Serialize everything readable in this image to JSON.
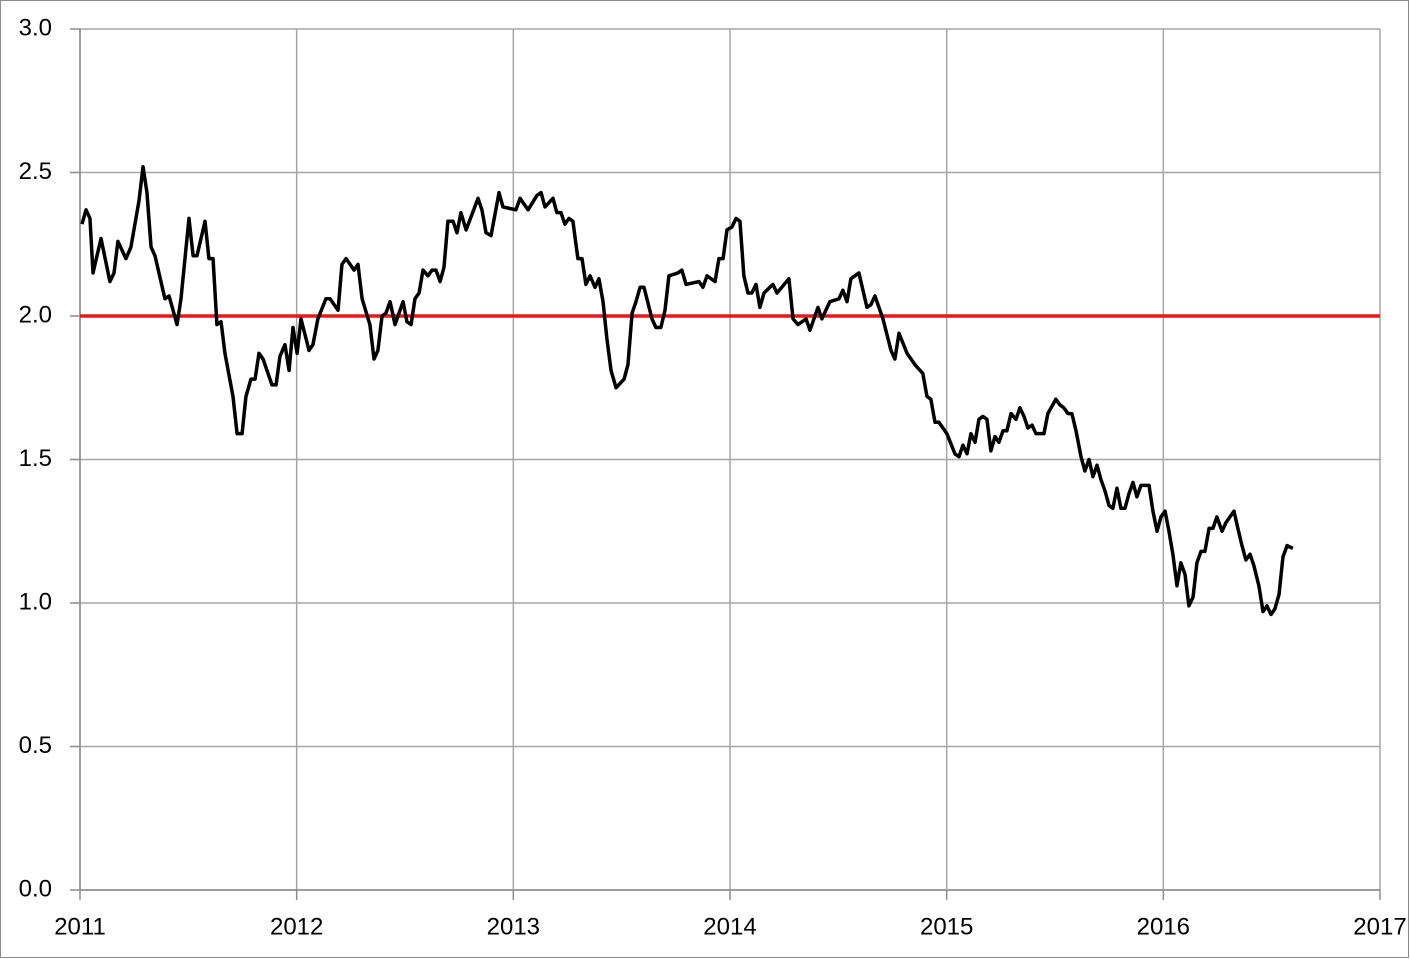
{
  "chart_data": {
    "type": "line",
    "x": [
      2011.009,
      2011.028,
      2011.046,
      2011.06,
      2011.097,
      2011.138,
      2011.157,
      2011.175,
      2011.212,
      2011.235,
      2011.272,
      2011.291,
      2011.309,
      2011.328,
      2011.346,
      2011.392,
      2011.411,
      2011.448,
      2011.466,
      2011.503,
      2011.522,
      2011.54,
      2011.577,
      2011.595,
      2011.614,
      2011.632,
      2011.651,
      2011.669,
      2011.706,
      2011.725,
      2011.748,
      2011.766,
      2011.789,
      2011.808,
      2011.826,
      2011.845,
      2011.886,
      2011.905,
      2011.923,
      2011.946,
      2011.965,
      2011.983,
      2012.002,
      2012.02,
      2012.057,
      2012.075,
      2012.098,
      2012.135,
      2012.154,
      2012.191,
      2012.209,
      2012.228,
      2012.265,
      2012.283,
      2012.302,
      2012.338,
      2012.357,
      2012.375,
      2012.394,
      2012.412,
      2012.431,
      2012.454,
      2012.491,
      2012.509,
      2012.528,
      2012.546,
      2012.565,
      2012.583,
      2012.606,
      2012.625,
      2012.643,
      2012.662,
      2012.68,
      2012.698,
      2012.722,
      2012.74,
      2012.758,
      2012.782,
      2012.837,
      2012.855,
      2012.874,
      2012.897,
      2012.934,
      2012.952,
      2013.012,
      2013.031,
      2013.068,
      2013.109,
      2013.128,
      2013.146,
      2013.183,
      2013.201,
      2013.22,
      2013.238,
      2013.257,
      2013.275,
      2013.298,
      2013.317,
      2013.335,
      2013.354,
      2013.377,
      2013.395,
      2013.414,
      2013.432,
      2013.451,
      2013.474,
      2013.511,
      2013.529,
      2013.548,
      2013.566,
      2013.585,
      2013.603,
      2013.64,
      2013.658,
      2013.681,
      2013.7,
      2013.718,
      2013.76,
      2013.778,
      2013.797,
      2013.857,
      2013.875,
      2013.894,
      2013.931,
      2013.949,
      2013.968,
      2013.986,
      2014.009,
      2014.028,
      2014.046,
      2014.064,
      2014.083,
      2014.101,
      2014.12,
      2014.138,
      2014.157,
      2014.198,
      2014.217,
      2014.272,
      2014.291,
      2014.314,
      2014.351,
      2014.369,
      2014.406,
      2014.424,
      2014.461,
      2014.503,
      2014.521,
      2014.54,
      2014.558,
      2014.595,
      2014.632,
      2014.651,
      2014.669,
      2014.706,
      2014.743,
      2014.761,
      2014.78,
      2014.817,
      2014.854,
      2014.89,
      2014.909,
      2014.927,
      2014.946,
      2014.964,
      2015.001,
      2015.038,
      2015.057,
      2015.075,
      2015.094,
      2015.112,
      2015.131,
      2015.149,
      2015.167,
      2015.186,
      2015.204,
      2015.223,
      2015.241,
      2015.26,
      2015.278,
      2015.297,
      2015.32,
      2015.338,
      2015.357,
      2015.375,
      2015.394,
      2015.412,
      2015.449,
      2015.467,
      2015.504,
      2015.523,
      2015.541,
      2015.56,
      2015.578,
      2015.597,
      2015.62,
      2015.638,
      2015.657,
      2015.675,
      2015.694,
      2015.712,
      2015.731,
      2015.749,
      2015.767,
      2015.786,
      2015.804,
      2015.823,
      2015.841,
      2015.86,
      2015.878,
      2015.897,
      2015.934,
      2015.952,
      2015.971,
      2015.989,
      2016.008,
      2016.026,
      2016.044,
      2016.063,
      2016.081,
      2016.1,
      2016.118,
      2016.137,
      2016.155,
      2016.174,
      2016.192,
      2016.211,
      2016.229,
      2016.247,
      2016.271,
      2016.289,
      2016.326,
      2016.344,
      2016.363,
      2016.381,
      2016.4,
      2016.418,
      2016.441,
      2016.46,
      2016.478,
      2016.497,
      2016.515,
      2016.534,
      2016.552,
      2016.571,
      2016.598
    ],
    "values": [
      2.32,
      2.37,
      2.34,
      2.15,
      2.27,
      2.12,
      2.15,
      2.26,
      2.2,
      2.24,
      2.4,
      2.52,
      2.43,
      2.24,
      2.21,
      2.06,
      2.07,
      1.97,
      2.06,
      2.34,
      2.21,
      2.21,
      2.33,
      2.2,
      2.2,
      1.97,
      1.98,
      1.87,
      1.72,
      1.59,
      1.59,
      1.72,
      1.78,
      1.78,
      1.87,
      1.85,
      1.76,
      1.76,
      1.86,
      1.9,
      1.81,
      1.96,
      1.87,
      1.99,
      1.88,
      1.9,
      1.99,
      2.06,
      2.06,
      2.02,
      2.18,
      2.2,
      2.16,
      2.18,
      2.06,
      1.97,
      1.85,
      1.88,
      2.0,
      2.01,
      2.05,
      1.97,
      2.05,
      1.98,
      1.97,
      2.06,
      2.08,
      2.16,
      2.14,
      2.16,
      2.16,
      2.12,
      2.17,
      2.33,
      2.33,
      2.29,
      2.36,
      2.3,
      2.41,
      2.37,
      2.29,
      2.28,
      2.43,
      2.38,
      2.37,
      2.41,
      2.37,
      2.42,
      2.43,
      2.38,
      2.41,
      2.36,
      2.36,
      2.32,
      2.34,
      2.33,
      2.2,
      2.2,
      2.11,
      2.14,
      2.1,
      2.13,
      2.05,
      1.92,
      1.81,
      1.75,
      1.78,
      1.83,
      2.01,
      2.05,
      2.1,
      2.1,
      1.99,
      1.96,
      1.96,
      2.02,
      2.14,
      2.15,
      2.16,
      2.11,
      2.12,
      2.1,
      2.14,
      2.12,
      2.2,
      2.2,
      2.3,
      2.31,
      2.34,
      2.33,
      2.14,
      2.08,
      2.08,
      2.11,
      2.03,
      2.08,
      2.11,
      2.08,
      2.13,
      1.99,
      1.97,
      1.99,
      1.95,
      2.03,
      1.99,
      2.05,
      2.06,
      2.09,
      2.05,
      2.13,
      2.15,
      2.03,
      2.04,
      2.07,
      1.99,
      1.88,
      1.85,
      1.94,
      1.87,
      1.83,
      1.8,
      1.72,
      1.71,
      1.63,
      1.63,
      1.59,
      1.52,
      1.51,
      1.55,
      1.52,
      1.59,
      1.56,
      1.64,
      1.65,
      1.64,
      1.53,
      1.58,
      1.56,
      1.6,
      1.6,
      1.66,
      1.64,
      1.68,
      1.65,
      1.61,
      1.62,
      1.59,
      1.59,
      1.66,
      1.71,
      1.69,
      1.68,
      1.66,
      1.66,
      1.6,
      1.51,
      1.46,
      1.5,
      1.44,
      1.48,
      1.43,
      1.39,
      1.34,
      1.33,
      1.4,
      1.33,
      1.33,
      1.38,
      1.42,
      1.37,
      1.41,
      1.41,
      1.32,
      1.25,
      1.3,
      1.32,
      1.25,
      1.17,
      1.06,
      1.14,
      1.1,
      0.99,
      1.02,
      1.14,
      1.18,
      1.18,
      1.26,
      1.26,
      1.3,
      1.25,
      1.28,
      1.32,
      1.26,
      1.2,
      1.15,
      1.17,
      1.13,
      1.06,
      0.97,
      0.99,
      0.96,
      0.98,
      1.03,
      1.16,
      1.2,
      1.19
    ],
    "color": "#000000",
    "reference_line": {
      "value": 2,
      "color": "#e8191c"
    },
    "xlim": [
      2011,
      2017
    ],
    "xticks": [
      2011,
      2012,
      2013,
      2014,
      2015,
      2016,
      2017
    ],
    "ylim": [
      0,
      3
    ],
    "yticks": [
      {
        "value": 0,
        "label": "0.0"
      },
      0.5,
      {
        "value": 1,
        "label": "1.0"
      },
      1.5,
      {
        "value": 2,
        "label": "2.0"
      },
      2.5,
      {
        "value": 3,
        "label": "3.0"
      }
    ],
    "grid": true
  }
}
